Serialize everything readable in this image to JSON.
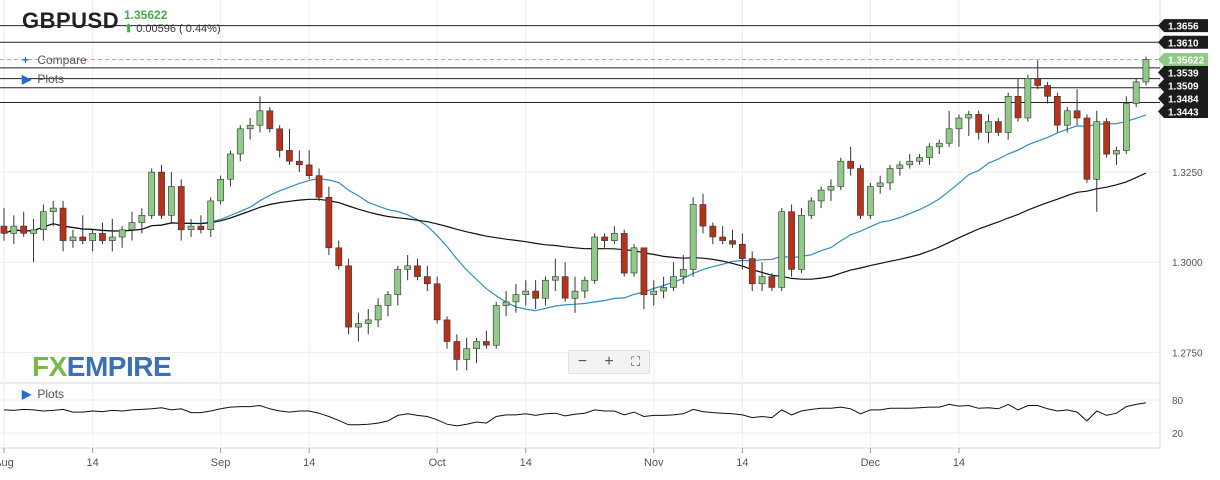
{
  "header": {
    "symbol": "GBPUSD",
    "last_price": "1.35622",
    "change": "0.00596",
    "change_pct": "( 0.44%)"
  },
  "controls": {
    "compare_label": "Compare",
    "plots_label": "Plots",
    "indicator_plots_label": "Plots",
    "zoom_out": "−",
    "zoom_in": "+",
    "fullscreen": "⛶"
  },
  "logo": {
    "fx": "FX",
    "empire": "EMPIRE"
  },
  "colors": {
    "up": "#8fca86",
    "down": "#b5321d",
    "ma_fast": "#2f8fc0",
    "ma_slow": "#111111",
    "last_price": "#8fca86"
  },
  "chart_data": {
    "type": "candlestick",
    "symbol": "GBPUSD",
    "ylim": [
      1.2665,
      1.3705
    ],
    "y_ticks": [
      "1.3250",
      "1.3000",
      "1.2750"
    ],
    "y_tick_values": [
      1.325,
      1.3,
      1.275
    ],
    "x_ticks": [
      {
        "label": "Aug",
        "index": 0
      },
      {
        "label": "14",
        "index": 9
      },
      {
        "label": "Sep",
        "index": 22
      },
      {
        "label": "14",
        "index": 31
      },
      {
        "label": "Oct",
        "index": 44
      },
      {
        "label": "14",
        "index": 53
      },
      {
        "label": "Nov",
        "index": 66
      },
      {
        "label": "14",
        "index": 75
      },
      {
        "label": "Dec",
        "index": 88
      },
      {
        "label": "14",
        "index": 97
      }
    ],
    "price_levels": [
      {
        "label": "1.3656",
        "value": 1.3656
      },
      {
        "label": "1.3610",
        "value": 1.361
      },
      {
        "label": "1.3539",
        "value": 1.3539
      },
      {
        "label": "1.3509",
        "value": 1.3509
      },
      {
        "label": "1.3484",
        "value": 1.3484
      },
      {
        "label": "1.3443",
        "value": 1.3443
      }
    ],
    "last_price": {
      "label": "1.35622",
      "value": 1.35622
    },
    "candles": [
      [
        1.31,
        1.315,
        1.306,
        1.308
      ],
      [
        1.308,
        1.313,
        1.305,
        1.31
      ],
      [
        1.31,
        1.314,
        1.307,
        1.308
      ],
      [
        1.308,
        1.312,
        1.3,
        1.309
      ],
      [
        1.309,
        1.316,
        1.306,
        1.314
      ],
      [
        1.314,
        1.317,
        1.31,
        1.315
      ],
      [
        1.315,
        1.317,
        1.303,
        1.306
      ],
      [
        1.306,
        1.309,
        1.304,
        1.307
      ],
      [
        1.307,
        1.313,
        1.305,
        1.306
      ],
      [
        1.306,
        1.309,
        1.303,
        1.308
      ],
      [
        1.308,
        1.311,
        1.305,
        1.306
      ],
      [
        1.306,
        1.312,
        1.303,
        1.307
      ],
      [
        1.307,
        1.31,
        1.304,
        1.309
      ],
      [
        1.309,
        1.314,
        1.306,
        1.311
      ],
      [
        1.311,
        1.315,
        1.308,
        1.313
      ],
      [
        1.313,
        1.326,
        1.312,
        1.325
      ],
      [
        1.325,
        1.327,
        1.312,
        1.313
      ],
      [
        1.313,
        1.325,
        1.311,
        1.321
      ],
      [
        1.321,
        1.323,
        1.306,
        1.309
      ],
      [
        1.309,
        1.312,
        1.307,
        1.31
      ],
      [
        1.31,
        1.313,
        1.308,
        1.309
      ],
      [
        1.309,
        1.318,
        1.307,
        1.317
      ],
      [
        1.317,
        1.324,
        1.316,
        1.323
      ],
      [
        1.323,
        1.331,
        1.321,
        1.33
      ],
      [
        1.33,
        1.338,
        1.328,
        1.337
      ],
      [
        1.337,
        1.34,
        1.334,
        1.338
      ],
      [
        1.338,
        1.346,
        1.336,
        1.342
      ],
      [
        1.342,
        1.343,
        1.336,
        1.337
      ],
      [
        1.337,
        1.338,
        1.329,
        1.331
      ],
      [
        1.331,
        1.337,
        1.327,
        1.328
      ],
      [
        1.328,
        1.331,
        1.325,
        1.327
      ],
      [
        1.327,
        1.331,
        1.323,
        1.324
      ],
      [
        1.324,
        1.326,
        1.317,
        1.318
      ],
      [
        1.318,
        1.321,
        1.302,
        1.304
      ],
      [
        1.304,
        1.306,
        1.298,
        1.299
      ],
      [
        1.299,
        1.301,
        1.28,
        1.282
      ],
      [
        1.282,
        1.286,
        1.278,
        1.283
      ],
      [
        1.283,
        1.287,
        1.28,
        1.284
      ],
      [
        1.284,
        1.29,
        1.282,
        1.288
      ],
      [
        1.288,
        1.292,
        1.285,
        1.291
      ],
      [
        1.291,
        1.299,
        1.288,
        1.298
      ],
      [
        1.298,
        1.302,
        1.295,
        1.299
      ],
      [
        1.299,
        1.301,
        1.295,
        1.296
      ],
      [
        1.296,
        1.299,
        1.292,
        1.294
      ],
      [
        1.294,
        1.296,
        1.283,
        1.284
      ],
      [
        1.284,
        1.285,
        1.276,
        1.278
      ],
      [
        1.278,
        1.28,
        1.27,
        1.273
      ],
      [
        1.273,
        1.279,
        1.27,
        1.276
      ],
      [
        1.276,
        1.279,
        1.272,
        1.278
      ],
      [
        1.278,
        1.281,
        1.276,
        1.277
      ],
      [
        1.277,
        1.289,
        1.276,
        1.288
      ],
      [
        1.288,
        1.292,
        1.285,
        1.289
      ],
      [
        1.289,
        1.294,
        1.286,
        1.291
      ],
      [
        1.291,
        1.295,
        1.288,
        1.292
      ],
      [
        1.292,
        1.295,
        1.287,
        1.29
      ],
      [
        1.29,
        1.296,
        1.288,
        1.295
      ],
      [
        1.295,
        1.301,
        1.292,
        1.296
      ],
      [
        1.296,
        1.3,
        1.289,
        1.29
      ],
      [
        1.29,
        1.296,
        1.286,
        1.292
      ],
      [
        1.292,
        1.296,
        1.29,
        1.295
      ],
      [
        1.295,
        1.308,
        1.294,
        1.307
      ],
      [
        1.307,
        1.308,
        1.304,
        1.306
      ],
      [
        1.306,
        1.31,
        1.305,
        1.308
      ],
      [
        1.308,
        1.309,
        1.296,
        1.297
      ],
      [
        1.297,
        1.305,
        1.296,
        1.304
      ],
      [
        1.304,
        1.304,
        1.287,
        1.291
      ],
      [
        1.291,
        1.295,
        1.288,
        1.292
      ],
      [
        1.292,
        1.296,
        1.29,
        1.293
      ],
      [
        1.293,
        1.3,
        1.292,
        1.296
      ],
      [
        1.296,
        1.302,
        1.294,
        1.298
      ],
      [
        1.298,
        1.318,
        1.296,
        1.316
      ],
      [
        1.316,
        1.319,
        1.308,
        1.31
      ],
      [
        1.31,
        1.311,
        1.305,
        1.307
      ],
      [
        1.307,
        1.31,
        1.305,
        1.306
      ],
      [
        1.306,
        1.309,
        1.304,
        1.305
      ],
      [
        1.305,
        1.308,
        1.298,
        1.301
      ],
      [
        1.301,
        1.303,
        1.292,
        1.294
      ],
      [
        1.294,
        1.3,
        1.292,
        1.296
      ],
      [
        1.296,
        1.297,
        1.292,
        1.293
      ],
      [
        1.293,
        1.315,
        1.292,
        1.314
      ],
      [
        1.314,
        1.316,
        1.296,
        1.298
      ],
      [
        1.298,
        1.315,
        1.297,
        1.313
      ],
      [
        1.313,
        1.318,
        1.312,
        1.317
      ],
      [
        1.317,
        1.321,
        1.315,
        1.32
      ],
      [
        1.32,
        1.323,
        1.317,
        1.321
      ],
      [
        1.321,
        1.329,
        1.32,
        1.328
      ],
      [
        1.328,
        1.332,
        1.324,
        1.326
      ],
      [
        1.326,
        1.327,
        1.312,
        1.313
      ],
      [
        1.313,
        1.322,
        1.312,
        1.321
      ],
      [
        1.321,
        1.324,
        1.319,
        1.322
      ],
      [
        1.322,
        1.327,
        1.32,
        1.326
      ],
      [
        1.326,
        1.328,
        1.324,
        1.327
      ],
      [
        1.327,
        1.33,
        1.326,
        1.328
      ],
      [
        1.328,
        1.33,
        1.327,
        1.329
      ],
      [
        1.329,
        1.333,
        1.327,
        1.332
      ],
      [
        1.332,
        1.334,
        1.33,
        1.333
      ],
      [
        1.333,
        1.342,
        1.332,
        1.337
      ],
      [
        1.337,
        1.341,
        1.332,
        1.34
      ],
      [
        1.34,
        1.342,
        1.335,
        1.341
      ],
      [
        1.341,
        1.342,
        1.334,
        1.336
      ],
      [
        1.336,
        1.341,
        1.333,
        1.339
      ],
      [
        1.339,
        1.34,
        1.335,
        1.336
      ],
      [
        1.336,
        1.347,
        1.334,
        1.346
      ],
      [
        1.346,
        1.351,
        1.339,
        1.34
      ],
      [
        1.34,
        1.352,
        1.339,
        1.351
      ],
      [
        1.351,
        1.356,
        1.348,
        1.349
      ],
      [
        1.349,
        1.35,
        1.344,
        1.346
      ],
      [
        1.346,
        1.347,
        1.336,
        1.338
      ],
      [
        1.338,
        1.343,
        1.336,
        1.342
      ],
      [
        1.342,
        1.348,
        1.338,
        1.34
      ],
      [
        1.34,
        1.341,
        1.322,
        1.323
      ],
      [
        1.323,
        1.342,
        1.314,
        1.339
      ],
      [
        1.339,
        1.34,
        1.329,
        1.33
      ],
      [
        1.33,
        1.332,
        1.327,
        1.331
      ],
      [
        1.331,
        1.346,
        1.33,
        1.344
      ],
      [
        1.344,
        1.351,
        1.343,
        1.35
      ],
      [
        1.35,
        1.357,
        1.349,
        1.3562
      ]
    ],
    "indicator": {
      "label": "Plots",
      "ylim": [
        0,
        100
      ],
      "y_ticks": [
        "80",
        "20"
      ],
      "y_tick_values": [
        80,
        20
      ],
      "values": [
        62,
        61,
        63,
        62,
        60,
        61,
        63,
        58,
        58,
        60,
        59,
        61,
        60,
        62,
        63,
        64,
        66,
        62,
        64,
        57,
        57,
        60,
        64,
        67,
        68,
        68,
        70,
        64,
        60,
        58,
        60,
        60,
        56,
        50,
        43,
        35,
        35,
        36,
        38,
        42,
        52,
        55,
        52,
        50,
        44,
        36,
        33,
        36,
        40,
        38,
        50,
        53,
        53,
        55,
        52,
        55,
        56,
        51,
        54,
        56,
        62,
        60,
        60,
        53,
        58,
        50,
        52,
        52,
        53,
        55,
        63,
        59,
        57,
        56,
        55,
        53,
        48,
        50,
        48,
        62,
        53,
        60,
        63,
        65,
        65,
        67,
        64,
        55,
        62,
        62,
        65,
        65,
        65,
        66,
        67,
        67,
        72,
        69,
        70,
        65,
        66,
        64,
        72,
        62,
        70,
        70,
        64,
        60,
        62,
        58,
        42,
        60,
        52,
        56,
        68,
        72,
        75
      ]
    }
  }
}
